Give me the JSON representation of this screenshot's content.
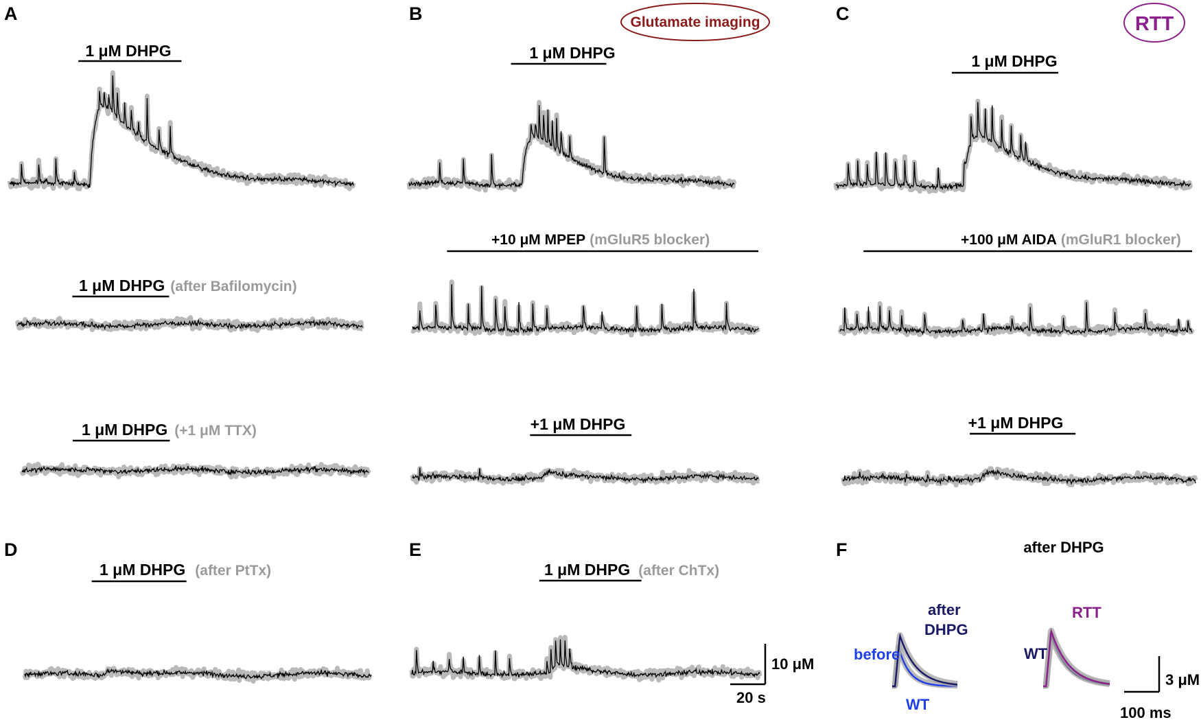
{
  "figure": {
    "panels": [
      "A",
      "B",
      "C",
      "D",
      "E",
      "F"
    ],
    "badges": {
      "glutamate": "Glutamate imaging",
      "rtt": "RTT"
    },
    "scale_bars": {
      "main_y": "10 μM",
      "main_x": "20 s",
      "f_y": "3 μM",
      "f_x": "100 ms"
    },
    "f_labels": {
      "after": "after",
      "dhpg": "DHPG",
      "before": "before",
      "wt": "WT",
      "after_dhpg": "after DHPG",
      "rtt": "RTT",
      "wt2": "WT"
    }
  },
  "chart_data": [
    {
      "id": "A1",
      "type": "line",
      "drug": "1 μM DHPG",
      "note": "",
      "x_s": [
        0,
        150
      ],
      "drug_s": [
        30,
        75
      ],
      "baseline": 0,
      "peak_uM": 18,
      "decay_s": 25,
      "spike_times_s": [
        5,
        12.5,
        20,
        28,
        39,
        41,
        43,
        45,
        47,
        50,
        53,
        56,
        60,
        65,
        70
      ],
      "spike_amp_uM": 7
    },
    {
      "id": "A2",
      "type": "line",
      "drug": "1 μM DHPG",
      "note": "(after Bafilomycin)",
      "x_s": [
        0,
        150
      ],
      "drug_s": [
        24,
        66
      ],
      "baseline": 0,
      "peak_uM": 0,
      "decay_s": 0,
      "spike_times_s": [],
      "spike_amp_uM": 0
    },
    {
      "id": "A3",
      "type": "line",
      "drug": "1 μM DHPG",
      "note": "(+1 μM TTX)",
      "x_s": [
        0,
        150
      ],
      "drug_s": [
        22,
        64
      ],
      "baseline": 0,
      "peak_uM": 0.3,
      "decay_s": 20,
      "spike_times_s": [],
      "spike_amp_uM": 0
    },
    {
      "id": "B1",
      "type": "line",
      "drug": "1 μM DHPG",
      "note": "",
      "x_s": [
        0,
        150
      ],
      "drug_s": [
        47,
        91
      ],
      "baseline": 0,
      "peak_uM": 11,
      "decay_s": 22,
      "spike_times_s": [
        14,
        25,
        38,
        56,
        58,
        60,
        62,
        64,
        66,
        68,
        70,
        74,
        90
      ],
      "spike_amp_uM": 7
    },
    {
      "id": "B2",
      "type": "line",
      "drug": "+10 μM MPEP",
      "note": "(mGluR5 blocker)",
      "x_s": [
        0,
        150
      ],
      "drug_s": [
        15,
        150
      ],
      "baseline": 0,
      "peak_uM": 0,
      "decay_s": 0,
      "spike_times_s": [
        3,
        10,
        17,
        24,
        30,
        36,
        40,
        46,
        52,
        58,
        74,
        82,
        97,
        108,
        122,
        136
      ],
      "spike_amp_uM": 8
    },
    {
      "id": "B3",
      "type": "line",
      "drug": "+1 μM DHPG",
      "note": "",
      "x_s": [
        0,
        150
      ],
      "drug_s": [
        51,
        95
      ],
      "baseline": 0,
      "peak_uM": 2,
      "decay_s": 6,
      "spike_times_s": [
        3,
        29
      ],
      "spike_amp_uM": 2
    },
    {
      "id": "C1",
      "type": "line",
      "drug": "1 μM DHPG",
      "note": "",
      "x_s": [
        0,
        150
      ],
      "drug_s": [
        49,
        94
      ],
      "baseline": 0,
      "peak_uM": 11,
      "decay_s": 25,
      "spike_times_s": [
        5,
        9,
        13,
        17,
        21,
        25,
        29,
        33,
        43,
        54,
        57,
        60,
        63,
        66,
        70,
        74,
        78,
        80
      ],
      "spike_amp_uM": 8
    },
    {
      "id": "C2",
      "type": "line",
      "drug": "+100 μM AIDA",
      "note": "(mGluR1 blocker)",
      "x_s": [
        0,
        150
      ],
      "drug_s": [
        10,
        150
      ],
      "baseline": 0,
      "peak_uM": 0,
      "decay_s": 0,
      "spike_times_s": [
        2,
        7,
        12,
        17,
        21,
        26,
        36,
        52,
        61,
        73,
        81,
        95,
        105,
        117,
        130,
        144,
        148
      ],
      "spike_amp_uM": 5
    },
    {
      "id": "C3",
      "type": "line",
      "drug": "+1 μM DHPG",
      "note": "",
      "x_s": [
        0,
        150
      ],
      "drug_s": [
        54,
        99
      ],
      "baseline": 0,
      "peak_uM": 2,
      "decay_s": 8,
      "spike_times_s": [
        7,
        17,
        27,
        36,
        45
      ],
      "spike_amp_uM": 1.2
    },
    {
      "id": "D",
      "type": "line",
      "drug": "1 μM DHPG",
      "note": "(after PtTx)",
      "x_s": [
        0,
        150
      ],
      "drug_s": [
        29,
        70
      ],
      "baseline": 0,
      "peak_uM": 1.5,
      "decay_s": 12,
      "spike_times_s": [],
      "spike_amp_uM": 0
    },
    {
      "id": "E",
      "type": "line",
      "drug": "1 μM DHPG",
      "note": "(after ChTx)",
      "x_s": [
        0,
        150
      ],
      "drug_s": [
        55,
        99
      ],
      "baseline": 0,
      "peak_uM": 2,
      "decay_s": 10,
      "spike_times_s": [
        2,
        9,
        16,
        22,
        29,
        36,
        42,
        58,
        60,
        62,
        64,
        66,
        68
      ],
      "spike_amp_uM": 5
    },
    {
      "id": "F_left",
      "type": "line",
      "x_ms": [
        0,
        270
      ],
      "y_uM": [
        0,
        10
      ],
      "series": [
        {
          "name": "before",
          "color": "#1f3fe8",
          "rise_ms": 15,
          "peak_uM": 6.6,
          "decay_ms": 45
        },
        {
          "name": "after DHPG",
          "color": "#191966",
          "rise_ms": 20,
          "peak_uM": 8.6,
          "decay_ms": 70
        }
      ]
    },
    {
      "id": "F_right",
      "type": "line",
      "x_ms": [
        0,
        270
      ],
      "y_uM": [
        0,
        10
      ],
      "series": [
        {
          "name": "WT",
          "color": "#191966",
          "rise_ms": 20,
          "peak_uM": 8.6,
          "decay_ms": 70
        },
        {
          "name": "RTT",
          "color": "#8b1f8b",
          "rise_ms": 20,
          "peak_uM": 9.4,
          "decay_ms": 75
        }
      ]
    }
  ]
}
